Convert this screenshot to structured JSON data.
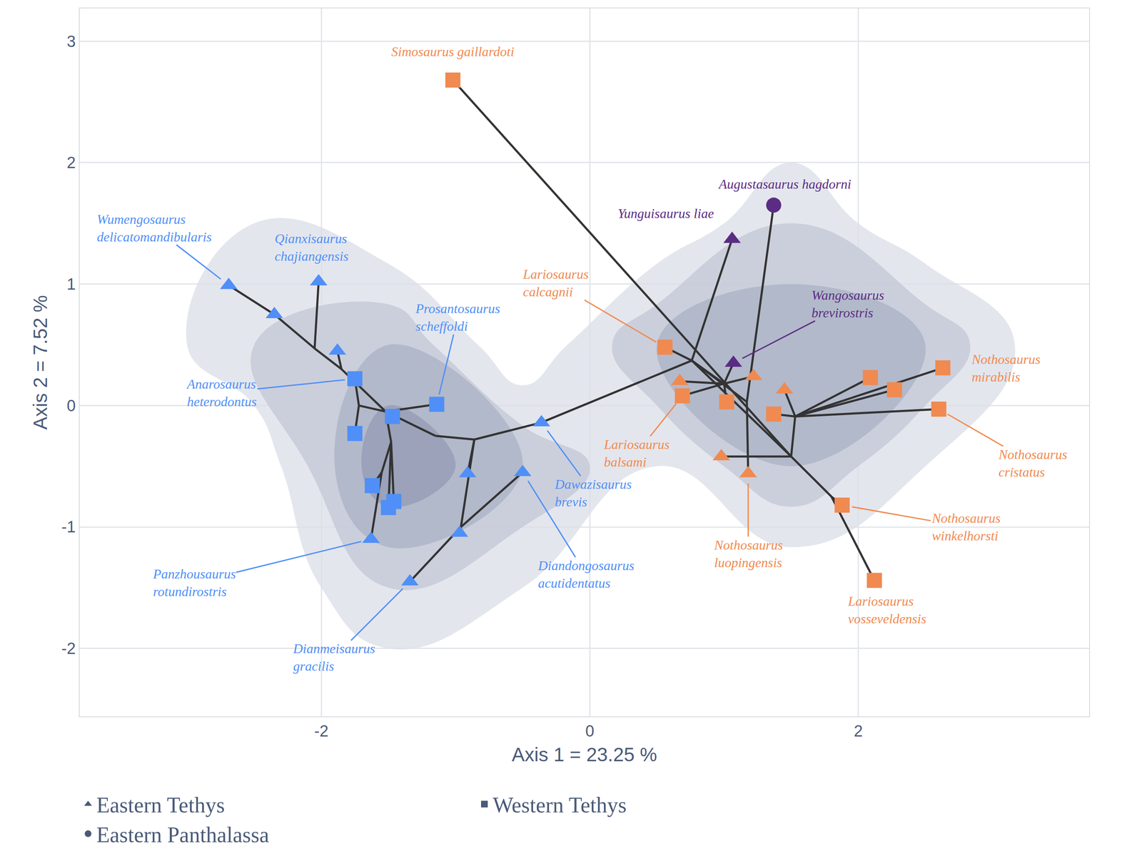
{
  "chart_data": {
    "type": "scatter",
    "xlabel": "Axis 1 = 23.25 %",
    "ylabel": "Axis 2 = 7.52 %",
    "xlim": [
      -3.8,
      3.72
    ],
    "ylim": [
      -2.56,
      3.27
    ],
    "xticks": [
      -2,
      0,
      2
    ],
    "yticks": [
      -2,
      -1,
      0,
      1,
      2,
      3
    ],
    "grid": true,
    "legend": "bottom",
    "series": [
      {
        "name": "Eastern Tethys",
        "marker": "triangle",
        "x": [
          -2.69,
          -2.35,
          -2.02,
          -1.88,
          -1.63,
          -0.91,
          -0.97,
          -0.5,
          -1.34,
          -0.36,
          1.06,
          1.07,
          0.67,
          1.22,
          1.45,
          0.98,
          1.18
        ],
        "y": [
          0.99,
          0.75,
          1.02,
          0.45,
          -1.1,
          -0.56,
          -1.05,
          -0.55,
          -1.45,
          -0.14,
          1.37,
          0.35,
          0.2,
          0.24,
          0.13,
          -0.42,
          -0.56
        ],
        "labels": [
          "Wumengosaurus delicatomandibularis",
          null,
          "Qianxisaurus chajiangensis",
          null,
          "Panzhousaurus rotundirostris",
          null,
          null,
          "Diandongosaurus acutidentatus",
          "Dianmeisaurus gracilis",
          "Dawazisaurus brevis",
          "Yunguisaurus liae",
          "Wangosaurus brevirostris",
          null,
          null,
          null,
          null,
          "Nothosaurus luopingensis"
        ],
        "colors": [
          "#4f8ff7",
          "#4f8ff7",
          "#4f8ff7",
          "#4f8ff7",
          "#4f8ff7",
          "#4f8ff7",
          "#4f8ff7",
          "#4f8ff7",
          "#4f8ff7",
          "#4f8ff7",
          "#5b2c83",
          "#5b2c83",
          "#f08a50",
          "#f08a50",
          "#f08a50",
          "#f08a50",
          "#f08a50"
        ]
      },
      {
        "name": "Western Tethys",
        "marker": "square",
        "x": [
          -1.75,
          -1.75,
          -1.47,
          -1.14,
          -1.62,
          -1.46,
          -1.5,
          -1.02,
          0.56,
          0.69,
          1.02,
          1.37,
          2.09,
          2.27,
          2.63,
          2.6,
          1.88,
          2.12
        ],
        "y": [
          0.22,
          -0.23,
          -0.09,
          0.01,
          -0.66,
          -0.79,
          -0.84,
          2.68,
          0.48,
          0.08,
          0.03,
          -0.07,
          0.23,
          0.13,
          0.31,
          -0.03,
          -0.82,
          -1.44
        ],
        "labels": [
          "Anarosaurus heterodontus",
          null,
          null,
          "Prosantosaurus scheffoldi",
          null,
          null,
          null,
          "Simosaurus gaillardoti",
          "Lariosaurus calcagnii",
          "Lariosaurus balsami",
          null,
          null,
          null,
          null,
          "Nothosaurus mirabilis",
          "Nothosaurus cristatus",
          "Nothosaurus winkelhorsti",
          "Lariosaurus vosseveldensis"
        ],
        "colors": [
          "#4f8ff7",
          "#4f8ff7",
          "#4f8ff7",
          "#4f8ff7",
          "#4f8ff7",
          "#4f8ff7",
          "#4f8ff7",
          "#f08a50",
          "#f08a50",
          "#f08a50",
          "#f08a50",
          "#f08a50",
          "#f08a50",
          "#f08a50",
          "#f08a50",
          "#f08a50",
          "#f08a50",
          "#f08a50"
        ]
      },
      {
        "name": "Eastern Panthalassa",
        "marker": "circle",
        "x": [
          1.37
        ],
        "y": [
          1.65
        ],
        "labels": [
          "Augustasaurus hagdorni"
        ],
        "colors": [
          "#5b2c83"
        ]
      }
    ],
    "tree_segments": [
      [
        -2.69,
        0.99,
        -2.35,
        0.75
      ],
      [
        -2.35,
        0.75,
        -2.05,
        0.47
      ],
      [
        -2.02,
        1.02,
        -2.05,
        0.47
      ],
      [
        -2.05,
        0.47,
        -1.85,
        0.3
      ],
      [
        -1.88,
        0.45,
        -1.85,
        0.3
      ],
      [
        -1.85,
        0.3,
        -1.52,
        -0.05
      ],
      [
        -1.75,
        0.22,
        -1.72,
        0.0
      ],
      [
        -1.75,
        -0.23,
        -1.72,
        0.0
      ],
      [
        -1.72,
        0.0,
        -1.52,
        -0.05
      ],
      [
        -1.14,
        0.01,
        -1.52,
        -0.05
      ],
      [
        -1.47,
        -0.09,
        -1.52,
        -0.05
      ],
      [
        -1.52,
        -0.05,
        -1.48,
        -0.3
      ],
      [
        -1.48,
        -0.3,
        -1.46,
        -0.79
      ],
      [
        -1.48,
        -0.3,
        -1.5,
        -0.84
      ],
      [
        -1.48,
        -0.3,
        -1.55,
        -0.55
      ],
      [
        -1.55,
        -0.55,
        -1.62,
        -0.66
      ],
      [
        -1.55,
        -0.55,
        -1.63,
        -1.1
      ],
      [
        -1.52,
        -0.05,
        -1.15,
        -0.25
      ],
      [
        -1.15,
        -0.25,
        -0.86,
        -0.28
      ],
      [
        -0.86,
        -0.28,
        -0.91,
        -0.56
      ],
      [
        -0.86,
        -0.28,
        -0.96,
        -1.0
      ],
      [
        -0.96,
        -1.0,
        -0.97,
        -1.05
      ],
      [
        -0.96,
        -1.0,
        -1.34,
        -1.45
      ],
      [
        -0.96,
        -1.0,
        -0.5,
        -0.55
      ],
      [
        -0.86,
        -0.28,
        -0.36,
        -0.14
      ],
      [
        -0.36,
        -0.14,
        0.76,
        0.37
      ],
      [
        -1.02,
        2.68,
        1.5,
        -0.42
      ],
      [
        0.76,
        0.37,
        1.06,
        1.37
      ],
      [
        0.76,
        0.37,
        1.17,
        0.03
      ],
      [
        1.37,
        1.65,
        1.17,
        0.03
      ],
      [
        1.17,
        0.03,
        1.18,
        -0.56
      ],
      [
        0.76,
        0.37,
        0.56,
        0.48
      ],
      [
        0.76,
        0.37,
        1.0,
        0.18
      ],
      [
        1.0,
        0.18,
        0.67,
        0.2
      ],
      [
        1.0,
        0.18,
        1.07,
        0.35
      ],
      [
        1.0,
        0.18,
        1.22,
        0.24
      ],
      [
        1.0,
        0.18,
        1.02,
        0.03
      ],
      [
        1.0,
        0.18,
        0.69,
        0.08
      ],
      [
        0.76,
        0.37,
        1.5,
        -0.42
      ],
      [
        1.5,
        -0.42,
        1.53,
        -0.09
      ],
      [
        1.53,
        -0.09,
        1.45,
        0.13
      ],
      [
        1.53,
        -0.09,
        1.37,
        -0.07
      ],
      [
        1.53,
        -0.09,
        2.09,
        0.23
      ],
      [
        1.53,
        -0.09,
        2.27,
        0.13
      ],
      [
        1.53,
        -0.09,
        2.63,
        0.31
      ],
      [
        1.53,
        -0.09,
        2.6,
        -0.03
      ],
      [
        1.5,
        -0.42,
        0.98,
        -0.42
      ],
      [
        1.5,
        -0.42,
        1.8,
        -0.75
      ],
      [
        1.8,
        -0.75,
        1.88,
        -0.82
      ],
      [
        1.8,
        -0.75,
        2.12,
        -1.44
      ]
    ]
  }
}
